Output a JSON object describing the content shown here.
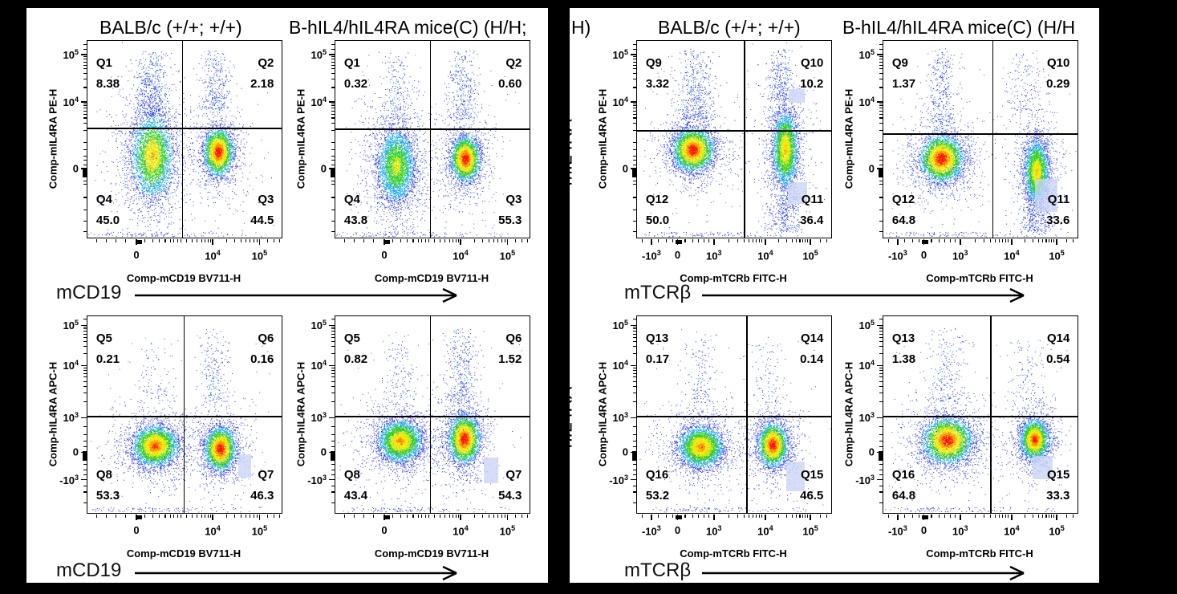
{
  "figure": {
    "background": "#000000",
    "panels": [
      {
        "id": "left",
        "title_prefix": "",
        "title_col1": "BALB/c (+/+; +/+)",
        "title_col2": "B-hIL4/hIL4RA mice(C) (H/H;",
        "marker_arrow_label": "mCD19",
        "edge_labels": []
      },
      {
        "id": "right",
        "title_prefix": "H)",
        "title_col1": "BALB/c (+/+; +/+)",
        "title_col2": "B-hIL4/hIL4RA mice(C) (H/H",
        "marker_arrow_label": "mTCRβ",
        "edge_labels": [
          "mIL4RA",
          "hIL4RA"
        ]
      }
    ]
  },
  "chart_data": {
    "type": "scatter",
    "subtype": "flow-cytometry-pseudocolor-density",
    "dot_palette": {
      "red": "#ff1400",
      "orange": "#ff8800",
      "yellow": "#f2ea00",
      "green": "#2fd41e",
      "cyan": "#17b4e8",
      "blue": "#2a3ae8",
      "pale_blue": "#4254f0",
      "highlight_box": "#cbd5f5"
    },
    "axes": {
      "x_cd19": {
        "title": "Comp-mCD19 BV711-H",
        "majors": [
          {
            "t": "0",
            "f": 0.256
          },
          {
            "t": "10",
            "s": "4",
            "f": 0.649
          },
          {
            "t": "10",
            "s": "5",
            "f": 0.89
          }
        ],
        "minors": [
          0.05,
          0.1,
          0.15,
          0.2,
          0.3,
          0.34,
          0.375,
          0.405,
          0.43,
          0.45,
          0.468,
          0.484,
          0.515,
          0.545,
          0.57,
          0.592,
          0.61,
          0.626,
          0.639,
          0.72,
          0.762,
          0.794,
          0.82,
          0.842,
          0.861,
          0.877,
          0.932,
          0.965,
          0.993
        ],
        "smudge": 0.27
      },
      "x_tcrb": {
        "title": "Comp-mTCRb FITC-H",
        "majors": [
          {
            "t": "-10",
            "s": "3",
            "f": 0.078
          },
          {
            "t": "0",
            "f": 0.213
          },
          {
            "t": "10",
            "s": "3",
            "f": 0.4
          },
          {
            "t": "10",
            "s": "4",
            "f": 0.665
          },
          {
            "t": "10",
            "s": "5",
            "f": 0.897
          }
        ],
        "minors": [
          0.03,
          0.115,
          0.155,
          0.188,
          0.252,
          0.29,
          0.322,
          0.35,
          0.374,
          0.478,
          0.524,
          0.556,
          0.581,
          0.602,
          0.619,
          0.634,
          0.648,
          0.734,
          0.775,
          0.803,
          0.825,
          0.843,
          0.858,
          0.871,
          0.883,
          0.95,
          0.982
        ],
        "smudge": 0.22
      },
      "y_pe": {
        "title": "Comp-mIL4RA PE-H",
        "majors": [
          {
            "t": "10",
            "s": "5",
            "f": 0.073
          },
          {
            "t": "10",
            "s": "4",
            "f": 0.314
          },
          {
            "t": "0",
            "f": 0.653
          }
        ],
        "minors": [
          0.022,
          0.046,
          0.085,
          0.097,
          0.111,
          0.127,
          0.146,
          0.169,
          0.199,
          0.241,
          0.324,
          0.334,
          0.346,
          0.36,
          0.376,
          0.396,
          0.422,
          0.458,
          0.52,
          0.558,
          0.588,
          0.612,
          0.633,
          0.675,
          0.697,
          0.716,
          0.733,
          0.8,
          0.862,
          0.922,
          0.972
        ],
        "smudge": 0.675
      },
      "y_apc": {
        "title": "Comp-hIL4RA APC-H",
        "majors": [
          {
            "t": "10",
            "s": "5",
            "f": 0.05
          },
          {
            "t": "10",
            "s": "4",
            "f": 0.255
          },
          {
            "t": "10",
            "s": "3",
            "f": 0.52
          },
          {
            "t": "0",
            "f": 0.695
          },
          {
            "t": "-10",
            "s": "3",
            "f": 0.835
          }
        ],
        "minors": [
          0.02,
          0.058,
          0.069,
          0.081,
          0.095,
          0.112,
          0.132,
          0.157,
          0.193,
          0.267,
          0.28,
          0.296,
          0.314,
          0.335,
          0.36,
          0.394,
          0.44,
          0.565,
          0.605,
          0.64,
          0.668,
          0.728,
          0.758,
          0.787,
          0.812,
          0.868,
          0.898,
          0.952
        ],
        "smudge": 0.715
      }
    },
    "plots": [
      {
        "id": "A1",
        "panel": 0,
        "x_axis": "x_cd19",
        "y_axis": "y_pe",
        "gate": {
          "vx": 0.49,
          "hy": 0.445
        },
        "quadrants": [
          {
            "name": "Q1",
            "value": "8.38",
            "corner": "tl"
          },
          {
            "name": "Q2",
            "value": "2.18",
            "corner": "tr"
          },
          {
            "name": "Q3",
            "value": "44.5",
            "corner": "br"
          },
          {
            "name": "Q4",
            "value": "45.0",
            "corner": "bl"
          }
        ],
        "highlights": [],
        "populations": [
          {
            "cx": 0.335,
            "cy": 0.585,
            "sx": 0.053,
            "sy": 0.105,
            "peak": 0.8,
            "n": 3400
          },
          {
            "cx": 0.675,
            "cy": 0.565,
            "sx": 0.036,
            "sy": 0.058,
            "peak": 1.0,
            "n": 2600
          }
        ],
        "tails": [
          {
            "cx": 0.33,
            "sx": 0.042,
            "y0": 0.05,
            "y1": 0.38,
            "n": 500
          },
          {
            "cx": 0.66,
            "sx": 0.04,
            "y0": 0.04,
            "y1": 0.35,
            "n": 310
          }
        ]
      },
      {
        "id": "A2",
        "panel": 0,
        "x_axis": "x_cd19",
        "y_axis": "y_pe",
        "gate": {
          "vx": 0.49,
          "hy": 0.45
        },
        "quadrants": [
          {
            "name": "Q1",
            "value": "0.32",
            "corner": "tl"
          },
          {
            "name": "Q2",
            "value": "0.60",
            "corner": "tr"
          },
          {
            "name": "Q3",
            "value": "55.3",
            "corner": "br"
          },
          {
            "name": "Q4",
            "value": "43.8",
            "corner": "bl"
          }
        ],
        "highlights": [],
        "populations": [
          {
            "cx": 0.315,
            "cy": 0.635,
            "sx": 0.05,
            "sy": 0.098,
            "peak": 0.68,
            "n": 3200
          },
          {
            "cx": 0.67,
            "cy": 0.6,
            "sx": 0.036,
            "sy": 0.056,
            "peak": 1.0,
            "n": 2600
          }
        ],
        "tails": [
          {
            "cx": 0.32,
            "sx": 0.045,
            "y0": 0.05,
            "y1": 0.4,
            "n": 180
          },
          {
            "cx": 0.655,
            "sx": 0.042,
            "y0": 0.04,
            "y1": 0.4,
            "n": 340
          }
        ]
      },
      {
        "id": "B1",
        "panel": 0,
        "x_axis": "x_cd19",
        "y_axis": "y_apc",
        "gate": {
          "vx": 0.498,
          "hy": 0.51
        },
        "quadrants": [
          {
            "name": "Q5",
            "value": "0.21",
            "corner": "tl"
          },
          {
            "name": "Q6",
            "value": "0.16",
            "corner": "tr"
          },
          {
            "name": "Q7",
            "value": "46.3",
            "corner": "br"
          },
          {
            "name": "Q8",
            "value": "53.3",
            "corner": "bl"
          }
        ],
        "highlights": [
          {
            "x": 0.775,
            "y": 0.7,
            "w": 0.07,
            "h": 0.12
          }
        ],
        "populations": [
          {
            "cx": 0.35,
            "cy": 0.66,
            "sx": 0.056,
            "sy": 0.05,
            "peak": 0.92,
            "n": 3300
          },
          {
            "cx": 0.685,
            "cy": 0.675,
            "sx": 0.038,
            "sy": 0.053,
            "peak": 1.0,
            "n": 2700
          }
        ],
        "tails": [
          {
            "cx": 0.34,
            "sx": 0.05,
            "y0": 0.1,
            "y1": 0.44,
            "n": 80
          },
          {
            "cx": 0.655,
            "sx": 0.038,
            "y0": 0.06,
            "y1": 0.44,
            "n": 200
          }
        ]
      },
      {
        "id": "B2",
        "panel": 0,
        "x_axis": "x_cd19",
        "y_axis": "y_apc",
        "gate": {
          "vx": 0.49,
          "hy": 0.51
        },
        "quadrants": [
          {
            "name": "Q5",
            "value": "0.82",
            "corner": "tl"
          },
          {
            "name": "Q6",
            "value": "1.52",
            "corner": "tr"
          },
          {
            "name": "Q7",
            "value": "54.3",
            "corner": "br"
          },
          {
            "name": "Q8",
            "value": "43.4",
            "corner": "bl"
          }
        ],
        "highlights": [
          {
            "x": 0.765,
            "y": 0.72,
            "w": 0.075,
            "h": 0.13
          }
        ],
        "populations": [
          {
            "cx": 0.335,
            "cy": 0.635,
            "sx": 0.055,
            "sy": 0.053,
            "peak": 0.84,
            "n": 3300
          },
          {
            "cx": 0.665,
            "cy": 0.625,
            "sx": 0.039,
            "sy": 0.06,
            "peak": 1.0,
            "n": 2800
          }
        ],
        "tails": [
          {
            "cx": 0.33,
            "sx": 0.05,
            "y0": 0.08,
            "y1": 0.44,
            "n": 130
          },
          {
            "cx": 0.65,
            "sx": 0.042,
            "y0": 0.05,
            "y1": 0.44,
            "n": 320
          }
        ]
      },
      {
        "id": "C1",
        "panel": 1,
        "x_axis": "x_tcrb",
        "y_axis": "y_pe",
        "gate": {
          "vx": 0.553,
          "hy": 0.458
        },
        "quadrants": [
          {
            "name": "Q9",
            "value": "3.32",
            "corner": "tl"
          },
          {
            "name": "Q10",
            "value": "10.2",
            "corner": "tr"
          },
          {
            "name": "Q11",
            "value": "36.4",
            "corner": "br"
          },
          {
            "name": "Q12",
            "value": "50.0",
            "corner": "bl"
          }
        ],
        "highlights": [
          {
            "x": 0.78,
            "y": 0.245,
            "w": 0.085,
            "h": 0.07
          },
          {
            "x": 0.775,
            "y": 0.72,
            "w": 0.1,
            "h": 0.11
          }
        ],
        "populations": [
          {
            "cx": 0.29,
            "cy": 0.555,
            "sx": 0.05,
            "sy": 0.053,
            "peak": 1.0,
            "n": 3300
          },
          {
            "cx": 0.765,
            "cy": 0.55,
            "sx": 0.032,
            "sy": 0.096,
            "peak": 0.8,
            "n": 3000
          }
        ],
        "tails": [
          {
            "cx": 0.3,
            "sx": 0.05,
            "y0": 0.04,
            "y1": 0.4,
            "n": 450
          },
          {
            "cx": 0.735,
            "sx": 0.035,
            "y0": 0.04,
            "y1": 0.3,
            "n": 240
          },
          {
            "cx": 0.76,
            "sx": 0.045,
            "y0": 0.78,
            "y1": 0.97,
            "n": 260
          }
        ]
      },
      {
        "id": "C2",
        "panel": 1,
        "x_axis": "x_tcrb",
        "y_axis": "y_pe",
        "gate": {
          "vx": 0.564,
          "hy": 0.473
        },
        "quadrants": [
          {
            "name": "Q9",
            "value": "1.37",
            "corner": "tl"
          },
          {
            "name": "Q10",
            "value": "0.29",
            "corner": "tr"
          },
          {
            "name": "Q11",
            "value": "33.6",
            "corner": "br"
          },
          {
            "name": "Q12",
            "value": "64.8",
            "corner": "bl"
          }
        ],
        "highlights": [
          {
            "x": 0.78,
            "y": 0.7,
            "w": 0.115,
            "h": 0.17
          }
        ],
        "populations": [
          {
            "cx": 0.3,
            "cy": 0.6,
            "sx": 0.053,
            "sy": 0.056,
            "peak": 1.0,
            "n": 3400
          },
          {
            "cx": 0.79,
            "cy": 0.665,
            "sx": 0.031,
            "sy": 0.082,
            "peak": 0.78,
            "n": 2700
          }
        ],
        "tails": [
          {
            "cx": 0.3,
            "sx": 0.04,
            "y0": 0.04,
            "y1": 0.42,
            "n": 330
          },
          {
            "cx": 0.73,
            "sx": 0.05,
            "y0": 0.04,
            "y1": 0.4,
            "n": 170
          },
          {
            "cx": 0.79,
            "sx": 0.045,
            "y0": 0.82,
            "y1": 0.97,
            "n": 200
          }
        ]
      },
      {
        "id": "D1",
        "panel": 1,
        "x_axis": "x_tcrb",
        "y_axis": "y_apc",
        "gate": {
          "vx": 0.565,
          "hy": 0.51
        },
        "quadrants": [
          {
            "name": "Q13",
            "value": "0.17",
            "corner": "tl"
          },
          {
            "name": "Q14",
            "value": "0.14",
            "corner": "tr"
          },
          {
            "name": "Q15",
            "value": "46.5",
            "corner": "br"
          },
          {
            "name": "Q16",
            "value": "53.2",
            "corner": "bl"
          }
        ],
        "highlights": [
          {
            "x": 0.77,
            "y": 0.74,
            "w": 0.095,
            "h": 0.15
          }
        ],
        "populations": [
          {
            "cx": 0.33,
            "cy": 0.665,
            "sx": 0.056,
            "sy": 0.051,
            "peak": 0.86,
            "n": 3300
          },
          {
            "cx": 0.7,
            "cy": 0.655,
            "sx": 0.036,
            "sy": 0.053,
            "peak": 1.0,
            "n": 2600
          }
        ],
        "tails": [
          {
            "cx": 0.33,
            "sx": 0.05,
            "y0": 0.06,
            "y1": 0.44,
            "n": 150
          },
          {
            "cx": 0.67,
            "sx": 0.045,
            "y0": 0.1,
            "y1": 0.44,
            "n": 90
          }
        ]
      },
      {
        "id": "D2",
        "panel": 1,
        "x_axis": "x_tcrb",
        "y_axis": "y_apc",
        "gate": {
          "vx": 0.554,
          "hy": 0.51
        },
        "quadrants": [
          {
            "name": "Q13",
            "value": "1.38",
            "corner": "tl"
          },
          {
            "name": "Q14",
            "value": "0.54",
            "corner": "tr"
          },
          {
            "name": "Q15",
            "value": "33.3",
            "corner": "br"
          },
          {
            "name": "Q16",
            "value": "64.8",
            "corner": "bl"
          }
        ],
        "highlights": [
          {
            "x": 0.77,
            "y": 0.71,
            "w": 0.1,
            "h": 0.12
          }
        ],
        "populations": [
          {
            "cx": 0.33,
            "cy": 0.632,
            "sx": 0.06,
            "sy": 0.056,
            "peak": 1.0,
            "n": 3600
          },
          {
            "cx": 0.78,
            "cy": 0.628,
            "sx": 0.035,
            "sy": 0.05,
            "peak": 0.95,
            "n": 2500
          }
        ],
        "tails": [
          {
            "cx": 0.33,
            "sx": 0.05,
            "y0": 0.05,
            "y1": 0.44,
            "n": 220
          },
          {
            "cx": 0.74,
            "sx": 0.05,
            "y0": 0.1,
            "y1": 0.44,
            "n": 110
          }
        ]
      }
    ]
  }
}
